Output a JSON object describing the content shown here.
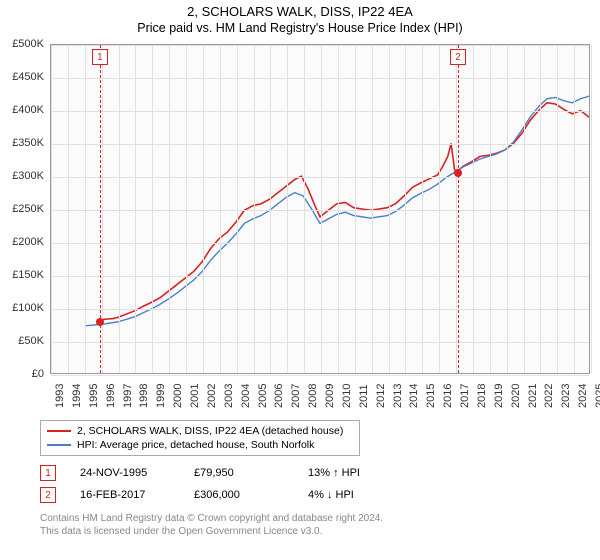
{
  "title": {
    "line1": "2, SCHOLARS WALK, DISS, IP22 4EA",
    "line2": "Price paid vs. HM Land Registry's House Price Index (HPI)"
  },
  "chart": {
    "type": "line",
    "background_color": "#fbfbfb",
    "grid_color": "#e0e0e0",
    "border_color": "#999999",
    "y_axis": {
      "min": 0,
      "max": 500000,
      "step": 50000,
      "labels": [
        "£0",
        "£50K",
        "£100K",
        "£150K",
        "£200K",
        "£250K",
        "£300K",
        "£350K",
        "£400K",
        "£450K",
        "£500K"
      ]
    },
    "x_axis": {
      "min": 1993,
      "max": 2025,
      "step": 1,
      "labels": [
        "1993",
        "1994",
        "1995",
        "1996",
        "1997",
        "1998",
        "1999",
        "2000",
        "2001",
        "2002",
        "2003",
        "2004",
        "2005",
        "2006",
        "2007",
        "2008",
        "2009",
        "2010",
        "2011",
        "2012",
        "2013",
        "2014",
        "2015",
        "2016",
        "2017",
        "2018",
        "2019",
        "2020",
        "2021",
        "2022",
        "2023",
        "2024",
        "2025"
      ]
    },
    "series": [
      {
        "id": "price_paid",
        "label": "2, SCHOLARS WALK, DISS, IP22 4EA (detached house)",
        "color": "#d92121",
        "line_width": 1.6,
        "data": [
          [
            1995.9,
            79950
          ],
          [
            1996.2,
            82000
          ],
          [
            1996.7,
            83000
          ],
          [
            1997.0,
            85000
          ],
          [
            1997.5,
            90000
          ],
          [
            1998.0,
            95000
          ],
          [
            1998.5,
            102000
          ],
          [
            1999.0,
            108000
          ],
          [
            1999.5,
            115000
          ],
          [
            2000.0,
            125000
          ],
          [
            2000.5,
            135000
          ],
          [
            2001.0,
            145000
          ],
          [
            2001.5,
            155000
          ],
          [
            2002.0,
            170000
          ],
          [
            2002.5,
            190000
          ],
          [
            2003.0,
            205000
          ],
          [
            2003.5,
            215000
          ],
          [
            2004.0,
            230000
          ],
          [
            2004.5,
            248000
          ],
          [
            2005.0,
            255000
          ],
          [
            2005.5,
            258000
          ],
          [
            2006.0,
            265000
          ],
          [
            2006.5,
            275000
          ],
          [
            2007.0,
            285000
          ],
          [
            2007.5,
            295000
          ],
          [
            2007.9,
            300000
          ],
          [
            2008.3,
            280000
          ],
          [
            2008.7,
            255000
          ],
          [
            2009.0,
            238000
          ],
          [
            2009.5,
            248000
          ],
          [
            2010.0,
            258000
          ],
          [
            2010.5,
            260000
          ],
          [
            2011.0,
            252000
          ],
          [
            2011.5,
            250000
          ],
          [
            2012.0,
            248000
          ],
          [
            2012.5,
            250000
          ],
          [
            2013.0,
            252000
          ],
          [
            2013.5,
            258000
          ],
          [
            2014.0,
            270000
          ],
          [
            2014.5,
            283000
          ],
          [
            2015.0,
            290000
          ],
          [
            2015.5,
            296000
          ],
          [
            2016.0,
            302000
          ],
          [
            2016.3,
            315000
          ],
          [
            2016.6,
            330000
          ],
          [
            2016.8,
            350000
          ],
          [
            2017.0,
            310000
          ],
          [
            2017.12,
            306000
          ],
          [
            2017.5,
            315000
          ],
          [
            2018.0,
            322000
          ],
          [
            2018.5,
            330000
          ],
          [
            2019.0,
            332000
          ],
          [
            2019.5,
            335000
          ],
          [
            2020.0,
            340000
          ],
          [
            2020.5,
            350000
          ],
          [
            2021.0,
            365000
          ],
          [
            2021.5,
            385000
          ],
          [
            2022.0,
            400000
          ],
          [
            2022.5,
            412000
          ],
          [
            2023.0,
            410000
          ],
          [
            2023.5,
            402000
          ],
          [
            2024.0,
            395000
          ],
          [
            2024.5,
            400000
          ],
          [
            2025.0,
            390000
          ]
        ]
      },
      {
        "id": "hpi",
        "label": "HPI: Average price, detached house, South Norfolk",
        "color": "#4a7ec9",
        "line_width": 1.4,
        "data": [
          [
            1995.0,
            72000
          ],
          [
            1995.5,
            73000
          ],
          [
            1996.0,
            74000
          ],
          [
            1996.5,
            76000
          ],
          [
            1997.0,
            78000
          ],
          [
            1997.5,
            82000
          ],
          [
            1998.0,
            86000
          ],
          [
            1998.5,
            92000
          ],
          [
            1999.0,
            98000
          ],
          [
            1999.5,
            105000
          ],
          [
            2000.0,
            113000
          ],
          [
            2000.5,
            122000
          ],
          [
            2001.0,
            132000
          ],
          [
            2001.5,
            142000
          ],
          [
            2002.0,
            155000
          ],
          [
            2002.5,
            172000
          ],
          [
            2003.0,
            186000
          ],
          [
            2003.5,
            198000
          ],
          [
            2004.0,
            212000
          ],
          [
            2004.5,
            228000
          ],
          [
            2005.0,
            235000
          ],
          [
            2005.5,
            240000
          ],
          [
            2006.0,
            248000
          ],
          [
            2006.5,
            258000
          ],
          [
            2007.0,
            268000
          ],
          [
            2007.5,
            275000
          ],
          [
            2008.0,
            270000
          ],
          [
            2008.5,
            250000
          ],
          [
            2009.0,
            228000
          ],
          [
            2009.5,
            235000
          ],
          [
            2010.0,
            242000
          ],
          [
            2010.5,
            245000
          ],
          [
            2011.0,
            240000
          ],
          [
            2011.5,
            238000
          ],
          [
            2012.0,
            236000
          ],
          [
            2012.5,
            238000
          ],
          [
            2013.0,
            240000
          ],
          [
            2013.5,
            246000
          ],
          [
            2014.0,
            256000
          ],
          [
            2014.5,
            267000
          ],
          [
            2015.0,
            274000
          ],
          [
            2015.5,
            280000
          ],
          [
            2016.0,
            288000
          ],
          [
            2016.5,
            298000
          ],
          [
            2017.0,
            306000
          ],
          [
            2017.5,
            314000
          ],
          [
            2018.0,
            320000
          ],
          [
            2018.5,
            326000
          ],
          [
            2019.0,
            330000
          ],
          [
            2019.5,
            334000
          ],
          [
            2020.0,
            340000
          ],
          [
            2020.5,
            352000
          ],
          [
            2021.0,
            370000
          ],
          [
            2021.5,
            390000
          ],
          [
            2022.0,
            406000
          ],
          [
            2022.5,
            418000
          ],
          [
            2023.0,
            420000
          ],
          [
            2023.5,
            415000
          ],
          [
            2024.0,
            412000
          ],
          [
            2024.5,
            418000
          ],
          [
            2025.0,
            422000
          ]
        ]
      }
    ],
    "markers": [
      {
        "id": 1,
        "label": "1",
        "x": 1995.9,
        "y": 79950,
        "color": "#d92121",
        "date": "24-NOV-1995",
        "price": "£79,950",
        "delta": "13% ↑ HPI"
      },
      {
        "id": 2,
        "label": "2",
        "x": 2017.12,
        "y": 306000,
        "color": "#d92121",
        "date": "16-FEB-2017",
        "price": "£306,000",
        "delta": "4% ↓ HPI"
      }
    ]
  },
  "legend": {
    "items": [
      {
        "color": "#d92121",
        "text": "2, SCHOLARS WALK, DISS, IP22 4EA (detached house)"
      },
      {
        "color": "#4a7ec9",
        "text": "HPI: Average price, detached house, South Norfolk"
      }
    ]
  },
  "footer": {
    "line1": "Contains HM Land Registry data © Crown copyright and database right 2024.",
    "line2": "This data is licensed under the Open Government Licence v3.0."
  }
}
